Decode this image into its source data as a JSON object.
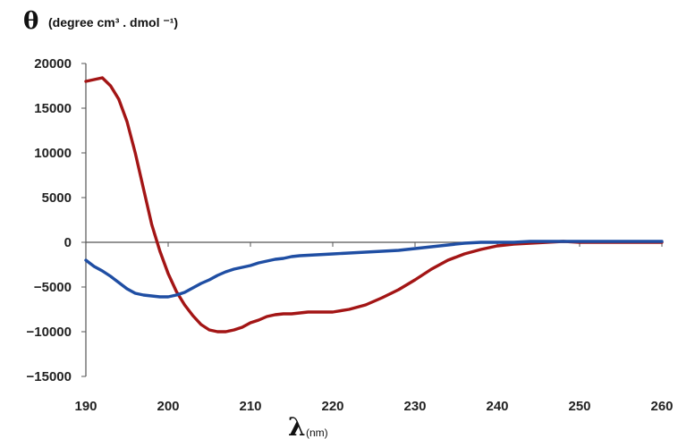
{
  "chart_data": {
    "type": "line",
    "ylabel_symbol": "θ",
    "ylabel_unit": "(degree cm³ . dmol ⁻¹)",
    "xlabel_symbol": "λ",
    "xlabel_unit": "(nm)",
    "xlim": [
      190,
      260
    ],
    "ylim": [
      -15000,
      20000
    ],
    "x_ticks": [
      "190",
      "200",
      "210",
      "220",
      "230",
      "240",
      "250",
      "260"
    ],
    "y_ticks": [
      "20000",
      "15000",
      "10000",
      "5000",
      "0",
      "−5000",
      "−10000",
      "−15000"
    ],
    "grid": false,
    "series": [
      {
        "color": "#a31515",
        "x": [
          190,
          191,
          192,
          193,
          194,
          195,
          196,
          197,
          198,
          199,
          200,
          201,
          202,
          203,
          204,
          205,
          206,
          207,
          208,
          209,
          210,
          211,
          212,
          213,
          214,
          215,
          216,
          217,
          218,
          219,
          220,
          222,
          224,
          226,
          228,
          230,
          232,
          234,
          236,
          238,
          240,
          242,
          244,
          246,
          248,
          250,
          252,
          254,
          256,
          258,
          260
        ],
        "y": [
          18000,
          18200,
          18400,
          17500,
          16000,
          13500,
          10000,
          6000,
          2000,
          -1000,
          -3500,
          -5500,
          -7000,
          -8200,
          -9200,
          -9800,
          -10000,
          -10000,
          -9800,
          -9500,
          -9000,
          -8700,
          -8300,
          -8100,
          -8000,
          -8000,
          -7900,
          -7800,
          -7800,
          -7800,
          -7800,
          -7500,
          -7000,
          -6200,
          -5300,
          -4200,
          -3000,
          -2000,
          -1300,
          -800,
          -400,
          -200,
          -100,
          0,
          100,
          0,
          0,
          0,
          0,
          0,
          0
        ]
      },
      {
        "color": "#1f4ea3",
        "x": [
          190,
          191,
          192,
          193,
          194,
          195,
          196,
          197,
          198,
          199,
          200,
          201,
          202,
          203,
          204,
          205,
          206,
          207,
          208,
          209,
          210,
          211,
          212,
          213,
          214,
          215,
          216,
          218,
          220,
          222,
          224,
          226,
          228,
          230,
          232,
          234,
          236,
          238,
          240,
          242,
          244,
          246,
          248,
          250,
          252,
          254,
          256,
          258,
          260
        ],
        "y": [
          -2000,
          -2700,
          -3200,
          -3800,
          -4500,
          -5200,
          -5700,
          -5900,
          -6000,
          -6100,
          -6100,
          -5900,
          -5600,
          -5100,
          -4600,
          -4200,
          -3700,
          -3300,
          -3000,
          -2800,
          -2600,
          -2300,
          -2100,
          -1900,
          -1800,
          -1600,
          -1500,
          -1400,
          -1300,
          -1200,
          -1100,
          -1000,
          -900,
          -700,
          -500,
          -300,
          -100,
          0,
          0,
          0,
          100,
          100,
          100,
          100,
          100,
          100,
          100,
          100,
          100
        ]
      }
    ]
  }
}
